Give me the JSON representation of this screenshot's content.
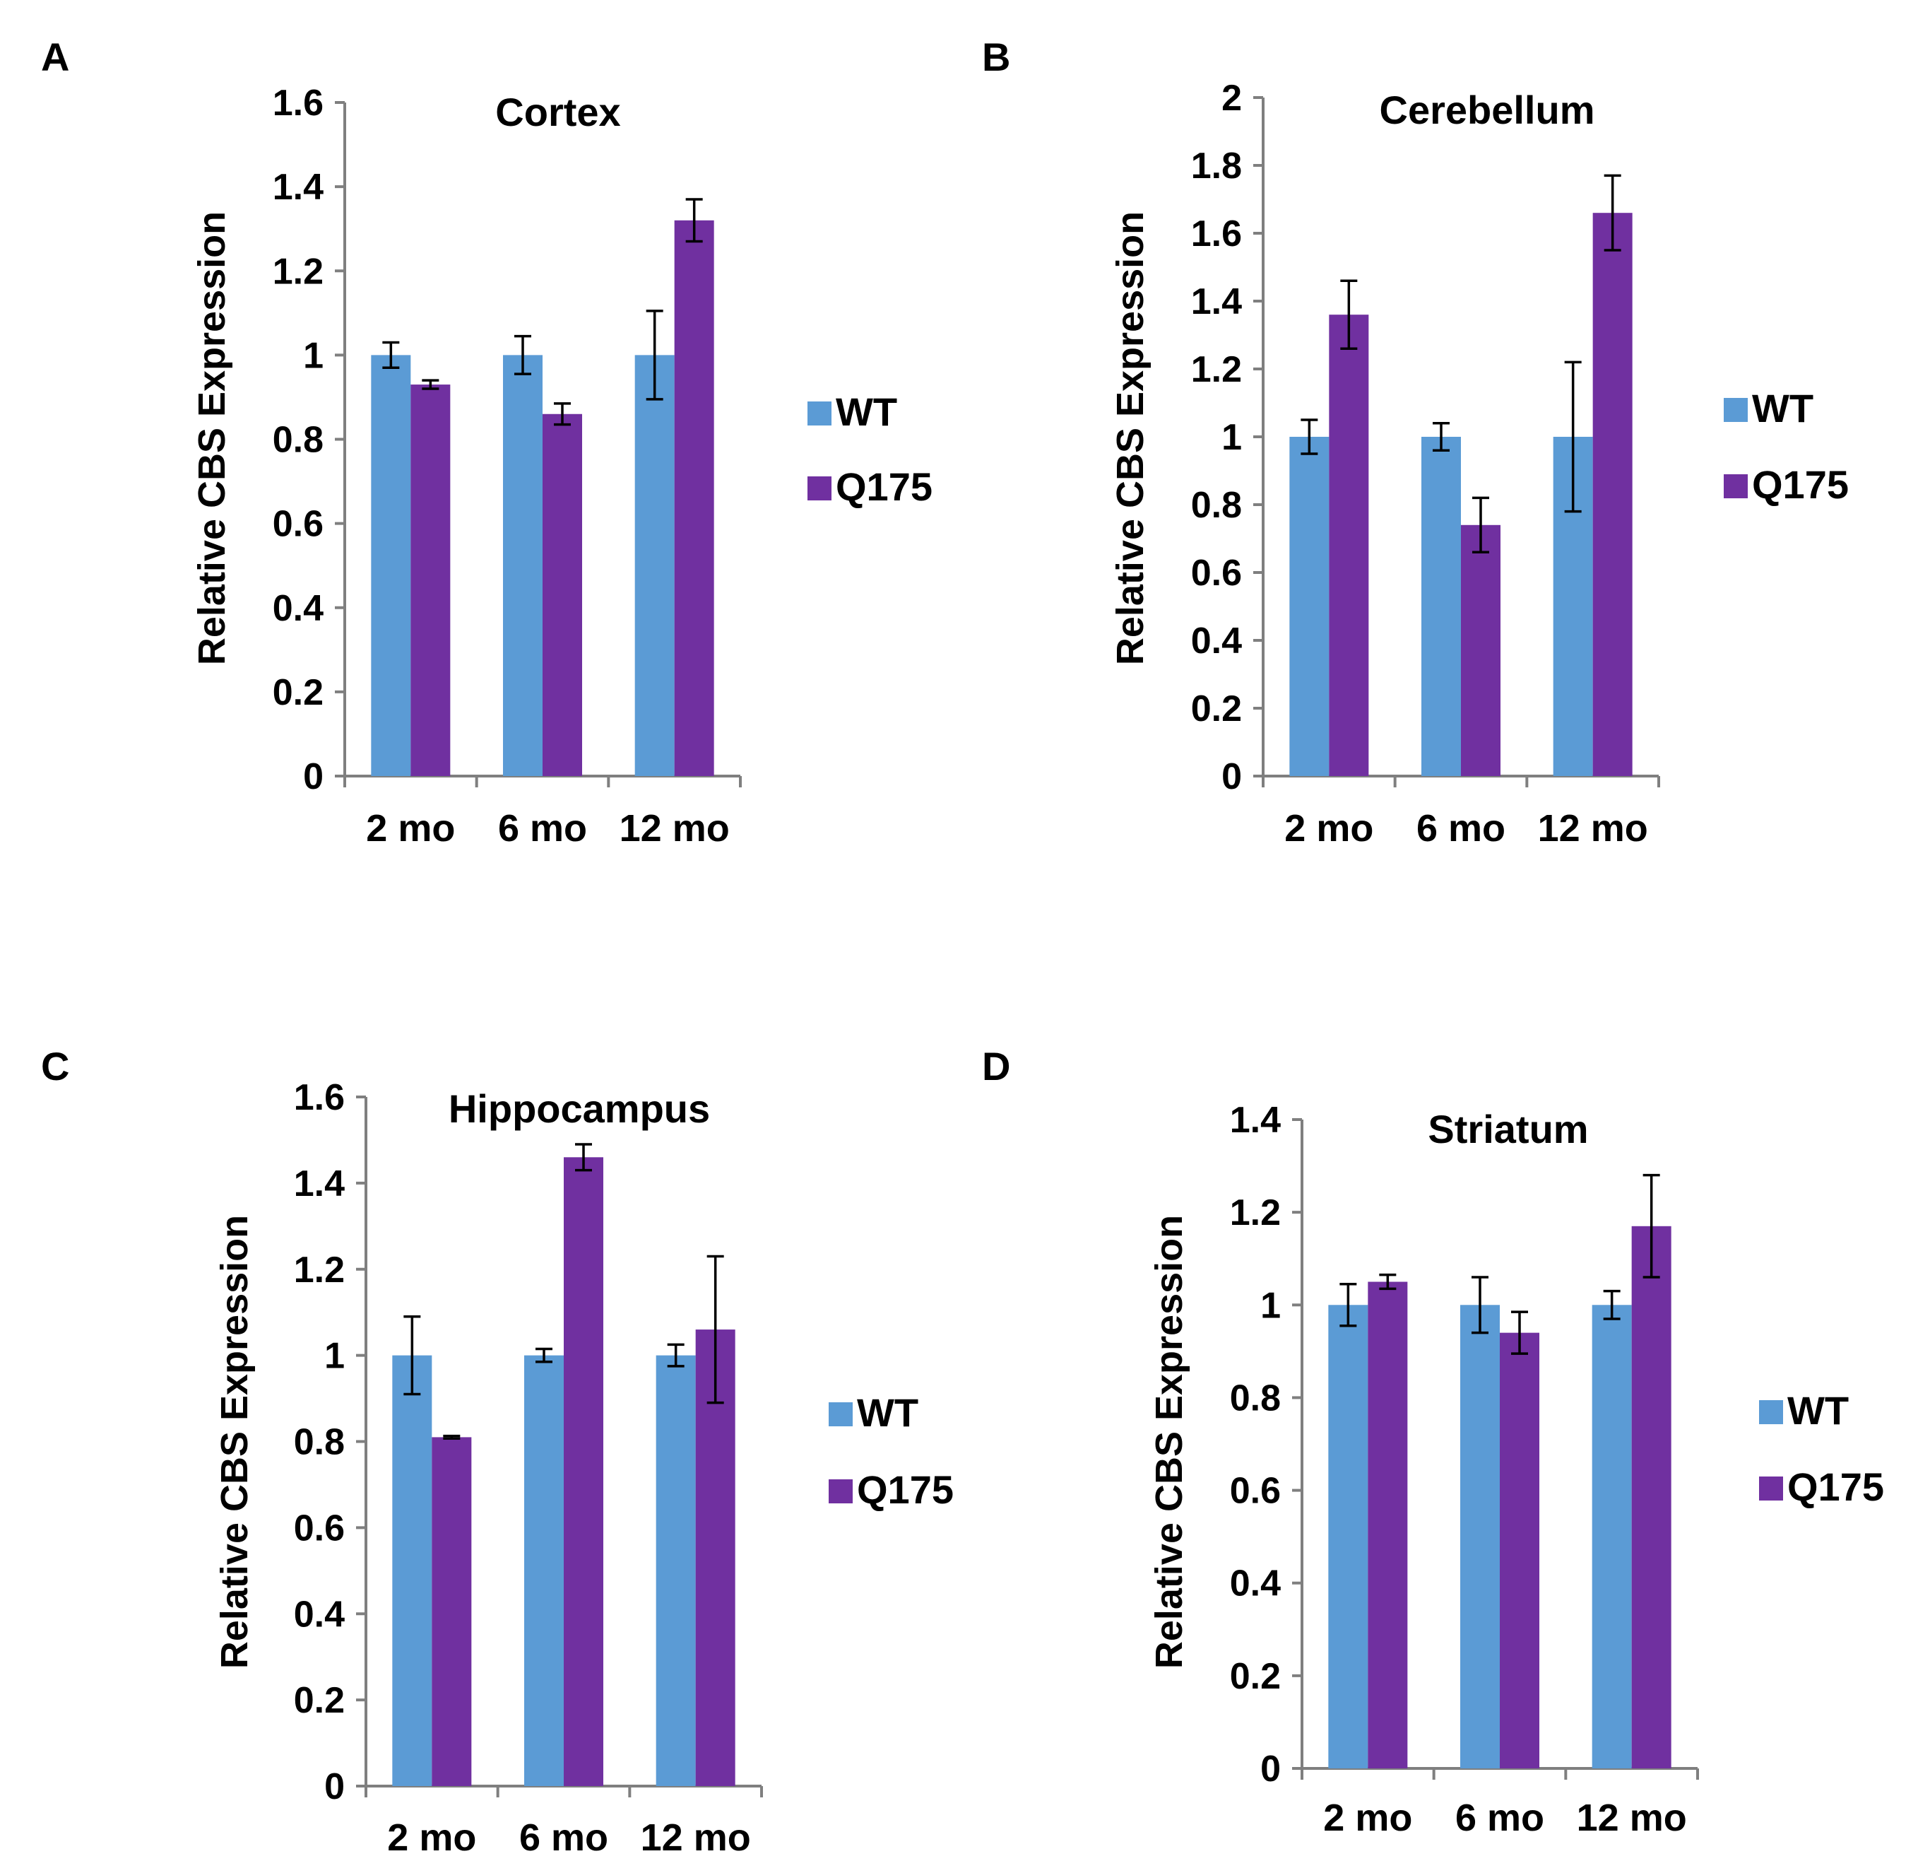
{
  "chart_data": [
    {
      "type": "bar",
      "panel": "A",
      "title": "Cortex",
      "ylabel": "Relative CBS Expression",
      "xlabel": "",
      "categories": [
        "2 mo",
        "6 mo",
        "12 mo"
      ],
      "ylim": [
        0,
        1.6
      ],
      "yticks": [
        "0",
        "0.2",
        "0.4",
        "0.6",
        "0.8",
        "1",
        "1.2",
        "1.4",
        "1.6"
      ],
      "legend_position": "right",
      "series": [
        {
          "name": "WT",
          "color": "#5b9bd5",
          "values": [
            1.0,
            1.0,
            1.0
          ],
          "errors": [
            0.03,
            0.045,
            0.105
          ]
        },
        {
          "name": "Q175",
          "color": "#7030a0",
          "values": [
            0.93,
            0.86,
            1.32
          ],
          "errors": [
            0.01,
            0.025,
            0.05
          ]
        }
      ]
    },
    {
      "type": "bar",
      "panel": "B",
      "title": "Cerebellum",
      "ylabel": "Relative CBS Expression",
      "xlabel": "",
      "categories": [
        "2 mo",
        "6 mo",
        "12 mo"
      ],
      "ylim": [
        0,
        2
      ],
      "yticks": [
        "0",
        "0.2",
        "0.4",
        "0.6",
        "0.8",
        "1",
        "1.2",
        "1.4",
        "1.6",
        "1.8",
        "2"
      ],
      "legend_position": "right",
      "series": [
        {
          "name": "WT",
          "color": "#5b9bd5",
          "values": [
            1.0,
            1.0,
            1.0
          ],
          "errors": [
            0.05,
            0.04,
            0.22
          ]
        },
        {
          "name": "Q175",
          "color": "#7030a0",
          "values": [
            1.36,
            0.74,
            1.66
          ],
          "errors": [
            0.1,
            0.08,
            0.11
          ]
        }
      ]
    },
    {
      "type": "bar",
      "panel": "C",
      "title": "Hippocampus",
      "ylabel": "Relative CBS Expression",
      "xlabel": "",
      "categories": [
        "2 mo",
        "6 mo",
        "12 mo"
      ],
      "ylim": [
        0,
        1.6
      ],
      "yticks": [
        "0",
        "0.2",
        "0.4",
        "0.6",
        "0.8",
        "1",
        "1.2",
        "1.4",
        "1.6"
      ],
      "legend_position": "right",
      "series": [
        {
          "name": "WT",
          "color": "#5b9bd5",
          "values": [
            1.0,
            1.0,
            1.0
          ],
          "errors": [
            0.09,
            0.015,
            0.025
          ]
        },
        {
          "name": "Q175",
          "color": "#7030a0",
          "values": [
            0.81,
            1.46,
            1.06
          ],
          "errors": [
            0.003,
            0.03,
            0.17
          ]
        }
      ]
    },
    {
      "type": "bar",
      "panel": "D",
      "title": "Striatum",
      "ylabel": "Relative CBS Expression",
      "xlabel": "",
      "categories": [
        "2 mo",
        "6 mo",
        "12 mo"
      ],
      "ylim": [
        0,
        1.4
      ],
      "yticks": [
        "0",
        "0.2",
        "0.4",
        "0.6",
        "0.8",
        "1",
        "1.2",
        "1.4"
      ],
      "legend_position": "right",
      "series": [
        {
          "name": "WT",
          "color": "#5b9bd5",
          "values": [
            1.0,
            1.0,
            1.0
          ],
          "errors": [
            0.045,
            0.06,
            0.03
          ]
        },
        {
          "name": "Q175",
          "color": "#7030a0",
          "values": [
            1.05,
            0.94,
            1.17
          ],
          "errors": [
            0.015,
            0.045,
            0.11
          ]
        }
      ]
    }
  ]
}
